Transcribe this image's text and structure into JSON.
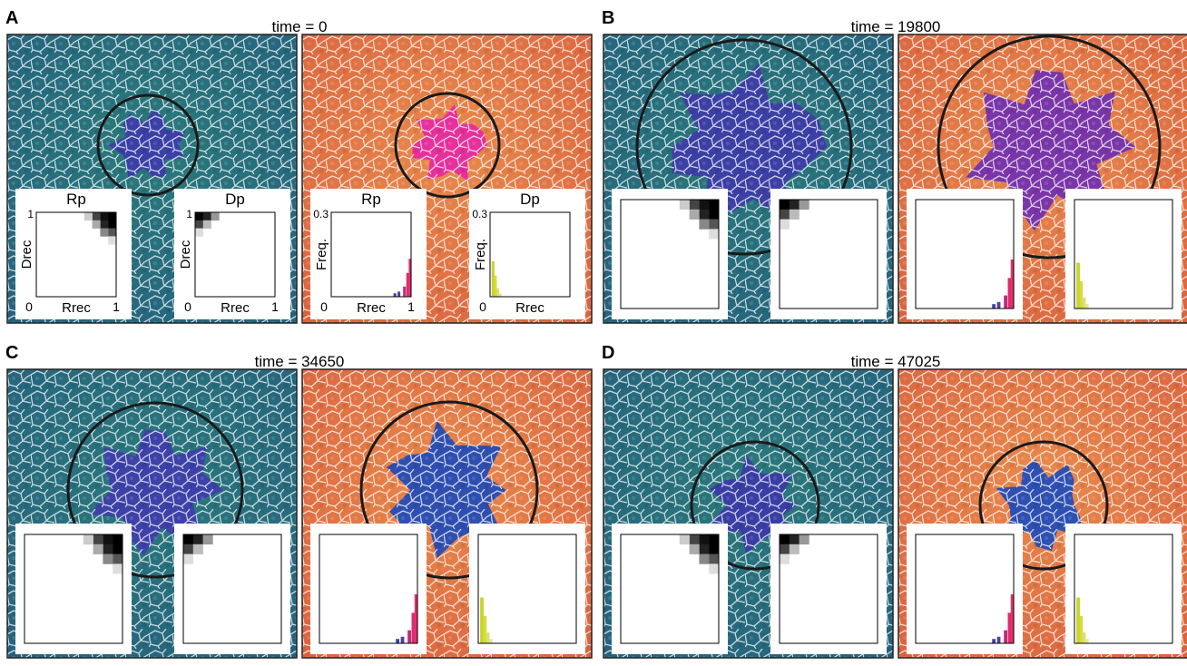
{
  "panels": [
    {
      "label": "A",
      "title": "time = 0",
      "insets": [
        {
          "title": "Rp",
          "y_label": "Drec",
          "x_label": "Rrec",
          "y_max": "1",
          "origin": "0",
          "x_max": "1"
        },
        {
          "title": "Dp",
          "y_label": "Drec",
          "x_label": "Rrec",
          "y_max": "1",
          "origin": "0",
          "x_max": "1"
        },
        {
          "title": "Rp",
          "y_label": "Freq.",
          "x_label": "Rrec",
          "y_max": "0.3",
          "origin": "0",
          "x_max": "1"
        },
        {
          "title": "Dp",
          "y_label": "Freq.",
          "x_label": "Rrec",
          "y_max": "0.3",
          "origin": "0"
        }
      ]
    },
    {
      "label": "B",
      "title": "time = 19800"
    },
    {
      "label": "C",
      "title": "time = 34650"
    },
    {
      "label": "D",
      "title": "time = 47025"
    }
  ]
}
